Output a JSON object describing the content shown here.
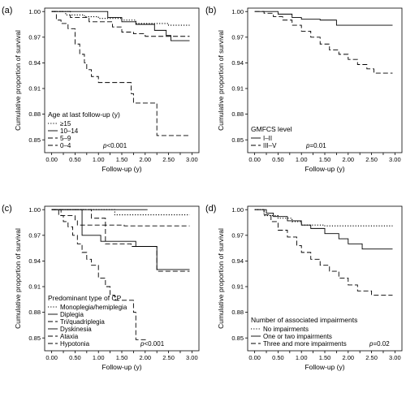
{
  "chart_data": [
    {
      "type": "line",
      "panel_label": "(a)",
      "xlabel": "Follow-up (y)",
      "ylabel": "Cumulative proportion of survival",
      "xlim": [
        -0.15,
        3.15
      ],
      "ylim": [
        0.835,
        1.004
      ],
      "xticks": [
        0.0,
        0.25,
        0.5,
        0.75,
        1.0,
        1.25,
        1.5,
        1.75,
        2.0,
        2.25,
        2.5,
        2.75,
        3.0
      ],
      "xticklabels": [
        "0.00",
        "0.25",
        "0.50",
        "0.75",
        "1.00",
        "1.25",
        "1.50",
        "1.75",
        "2.00",
        "2.25",
        "2.50",
        "2.75",
        "3.00"
      ],
      "yticks": [
        0.85,
        0.88,
        0.91,
        0.94,
        0.97,
        1.0
      ],
      "yticklabels": [
        "0.85",
        "0.88",
        "0.91",
        "0.94",
        "0.97",
        "1.00"
      ],
      "legend_title": "Age at last follow-up (y)",
      "legend_position": "lower-left",
      "p_value_prefix": "p",
      "p_value_text": "<0.001",
      "grid": false,
      "series": [
        {
          "name": "≥15",
          "style": "dotted",
          "points": [
            [
              0,
              1.0
            ],
            [
              0.3,
              0.996
            ],
            [
              0.7,
              0.994
            ],
            [
              1.0,
              0.992
            ],
            [
              1.5,
              0.99
            ],
            [
              1.8,
              0.986
            ],
            [
              2.5,
              0.984
            ],
            [
              2.95,
              0.984
            ]
          ]
        },
        {
          "name": "10–14",
          "style": "solid",
          "points": [
            [
              0,
              1.0
            ],
            [
              1.0,
              1.0
            ],
            [
              1.2,
              0.993
            ],
            [
              1.5,
              0.988
            ],
            [
              1.8,
              0.985
            ],
            [
              2.2,
              0.978
            ],
            [
              2.45,
              0.972
            ],
            [
              2.55,
              0.966
            ],
            [
              2.95,
              0.966
            ]
          ]
        },
        {
          "name": "5–9",
          "style": "dashed",
          "points": [
            [
              0,
              1.0
            ],
            [
              0.4,
              0.993
            ],
            [
              0.8,
              0.988
            ],
            [
              1.3,
              0.982
            ],
            [
              1.5,
              0.976
            ],
            [
              1.75,
              0.974
            ],
            [
              2.0,
              0.971
            ],
            [
              2.95,
              0.971
            ]
          ]
        },
        {
          "name": "0–4",
          "style": "dashed",
          "points": [
            [
              0,
              1.0
            ],
            [
              0.1,
              0.99
            ],
            [
              0.2,
              0.986
            ],
            [
              0.35,
              0.98
            ],
            [
              0.5,
              0.962
            ],
            [
              0.6,
              0.95
            ],
            [
              0.7,
              0.94
            ],
            [
              0.75,
              0.932
            ],
            [
              0.85,
              0.924
            ],
            [
              1.0,
              0.917
            ],
            [
              1.2,
              0.917
            ],
            [
              1.35,
              0.917
            ],
            [
              1.7,
              0.904
            ],
            [
              1.75,
              0.893
            ],
            [
              2.1,
              0.893
            ],
            [
              2.25,
              0.855
            ],
            [
              2.95,
              0.855
            ]
          ]
        }
      ]
    },
    {
      "type": "line",
      "panel_label": "(b)",
      "xlabel": "Follow-up (y)",
      "ylabel": "Cumulative proportion of survival",
      "xlim": [
        -0.15,
        3.15
      ],
      "ylim": [
        0.835,
        1.004
      ],
      "xticks": [
        0.0,
        0.25,
        0.5,
        0.75,
        1.0,
        1.25,
        1.5,
        1.75,
        2.0,
        2.25,
        2.5,
        2.75,
        3.0
      ],
      "xticklabels": [
        "0.00",
        "0.25",
        "0.50",
        "0.75",
        "1.00",
        "1.25",
        "1.50",
        "1.75",
        "2.00",
        "2.25",
        "2.50",
        "2.75",
        "3.00"
      ],
      "yticks": [
        0.85,
        0.88,
        0.91,
        0.94,
        0.97,
        1.0
      ],
      "yticklabels": [
        "0.85",
        "0.88",
        "0.91",
        "0.94",
        "0.97",
        "1.00"
      ],
      "legend_title": "GMFCS level",
      "legend_position": "lower-left",
      "p_value_prefix": "p",
      "p_value_text": "=0.01",
      "grid": false,
      "series": [
        {
          "name": "I–II",
          "style": "solid",
          "points": [
            [
              0,
              1.0
            ],
            [
              0.5,
              0.997
            ],
            [
              0.8,
              0.993
            ],
            [
              1.0,
              0.991
            ],
            [
              1.4,
              0.99
            ],
            [
              1.75,
              0.984
            ],
            [
              2.95,
              0.984
            ]
          ]
        },
        {
          "name": "III–V",
          "style": "dashed",
          "points": [
            [
              0,
              1.0
            ],
            [
              0.2,
              0.998
            ],
            [
              0.4,
              0.994
            ],
            [
              0.6,
              0.99
            ],
            [
              0.8,
              0.984
            ],
            [
              1.0,
              0.977
            ],
            [
              1.2,
              0.97
            ],
            [
              1.4,
              0.962
            ],
            [
              1.6,
              0.955
            ],
            [
              1.8,
              0.95
            ],
            [
              2.0,
              0.944
            ],
            [
              2.2,
              0.938
            ],
            [
              2.4,
              0.933
            ],
            [
              2.55,
              0.928
            ],
            [
              2.95,
              0.928
            ]
          ]
        }
      ]
    },
    {
      "type": "line",
      "panel_label": "(c)",
      "xlabel": "Follow-up (y)",
      "ylabel": "Cumulative proportion of survival",
      "xlim": [
        -0.15,
        3.15
      ],
      "ylim": [
        0.835,
        1.004
      ],
      "xticks": [
        0.0,
        0.25,
        0.5,
        0.75,
        1.0,
        1.25,
        1.5,
        1.75,
        2.0,
        2.25,
        2.5,
        2.75,
        3.0
      ],
      "xticklabels": [
        "0.00",
        "0.25",
        "0.50",
        "0.75",
        "1.00",
        "1.25",
        "1.50",
        "1.75",
        "2.00",
        "2.25",
        "2.50",
        "2.75",
        "3.00"
      ],
      "yticks": [
        0.85,
        0.88,
        0.91,
        0.94,
        0.97,
        1.0
      ],
      "yticklabels": [
        "0.85",
        "0.88",
        "0.91",
        "0.94",
        "0.97",
        "1.00"
      ],
      "legend_title": "Predominant type of CP",
      "legend_position": "lower-left",
      "p_value_prefix": "p",
      "p_value_text": "<0.001",
      "grid": false,
      "series": [
        {
          "name": "Monoplegia/hemiplegia",
          "style": "dotted",
          "points": [
            [
              0,
              1.0
            ],
            [
              1.3,
              1.0
            ],
            [
              1.35,
              0.994
            ],
            [
              2.95,
              0.994
            ]
          ]
        },
        {
          "name": "Diplegia",
          "style": "solid",
          "points": [
            [
              0,
              1.0
            ],
            [
              2.05,
              1.0
            ]
          ]
        },
        {
          "name": "Tri/quadriplegia",
          "style": "dashed",
          "points": [
            [
              0,
              1.0
            ],
            [
              0.2,
              0.993
            ],
            [
              0.5,
              0.988
            ],
            [
              0.55,
              0.982
            ],
            [
              1.5,
              0.982
            ],
            [
              1.55,
              0.981
            ],
            [
              2.95,
              0.981
            ]
          ]
        },
        {
          "name": "Dyskinesia",
          "style": "solid",
          "points": [
            [
              0,
              1.0
            ],
            [
              0.6,
              1.0
            ],
            [
              0.65,
              0.97
            ],
            [
              1.0,
              0.97
            ],
            [
              1.05,
              0.963
            ],
            [
              1.75,
              0.963
            ],
            [
              1.8,
              0.957
            ],
            [
              2.2,
              0.957
            ],
            [
              2.25,
              0.93
            ],
            [
              2.95,
              0.93
            ]
          ]
        },
        {
          "name": "Ataxia",
          "style": "dashed",
          "points": [
            [
              0,
              1.0
            ],
            [
              0.8,
              1.0
            ],
            [
              0.85,
              0.99
            ],
            [
              1.1,
              0.99
            ],
            [
              1.15,
              0.96
            ],
            [
              1.65,
              0.96
            ],
            [
              1.7,
              0.957
            ],
            [
              2.2,
              0.957
            ],
            [
              2.25,
              0.928
            ],
            [
              2.95,
              0.928
            ]
          ]
        },
        {
          "name": "Hypotonia",
          "style": "dashed",
          "points": [
            [
              0,
              1.0
            ],
            [
              0.15,
              0.993
            ],
            [
              0.25,
              0.986
            ],
            [
              0.35,
              0.98
            ],
            [
              0.45,
              0.97
            ],
            [
              0.55,
              0.96
            ],
            [
              0.65,
              0.95
            ],
            [
              0.75,
              0.942
            ],
            [
              0.85,
              0.935
            ],
            [
              1.0,
              0.92
            ],
            [
              1.15,
              0.91
            ],
            [
              1.25,
              0.9
            ],
            [
              1.35,
              0.894
            ],
            [
              1.65,
              0.894
            ],
            [
              1.75,
              0.88
            ],
            [
              1.8,
              0.848
            ],
            [
              2.05,
              0.848
            ]
          ]
        }
      ]
    },
    {
      "type": "line",
      "panel_label": "(d)",
      "xlabel": "Follow-up (y)",
      "ylabel": "Cumulative proportion of survival",
      "xlim": [
        -0.15,
        3.15
      ],
      "ylim": [
        0.835,
        1.004
      ],
      "xticks": [
        0.0,
        0.25,
        0.5,
        0.75,
        1.0,
        1.25,
        1.5,
        1.75,
        2.0,
        2.25,
        2.5,
        2.75,
        3.0
      ],
      "xticklabels": [
        "0.00",
        "0.25",
        "0.50",
        "0.75",
        "1.00",
        "1.25",
        "1.50",
        "1.75",
        "2.00",
        "2.25",
        "2.50",
        "2.75",
        "3.00"
      ],
      "yticks": [
        0.85,
        0.88,
        0.91,
        0.94,
        0.97,
        1.0
      ],
      "yticklabels": [
        "0.85",
        "0.88",
        "0.91",
        "0.94",
        "0.97",
        "1.00"
      ],
      "legend_title": "Number of associated impairments",
      "legend_position": "lower-left",
      "p_value_prefix": "p",
      "p_value_text": "=0.02",
      "grid": false,
      "series": [
        {
          "name": "No impairments",
          "style": "dotted",
          "points": [
            [
              0,
              1.0
            ],
            [
              0.2,
              0.993
            ],
            [
              0.5,
              0.99
            ],
            [
              0.8,
              0.986
            ],
            [
              1.0,
              0.982
            ],
            [
              1.5,
              0.981
            ],
            [
              2.95,
              0.981
            ]
          ]
        },
        {
          "name": "One or two impairments",
          "style": "solid",
          "points": [
            [
              0,
              1.0
            ],
            [
              0.25,
              0.996
            ],
            [
              0.4,
              0.992
            ],
            [
              0.7,
              0.987
            ],
            [
              1.0,
              0.982
            ],
            [
              1.2,
              0.978
            ],
            [
              1.5,
              0.972
            ],
            [
              1.8,
              0.966
            ],
            [
              2.0,
              0.96
            ],
            [
              2.3,
              0.954
            ],
            [
              2.95,
              0.954
            ]
          ]
        },
        {
          "name": "Three and more impairments",
          "style": "dashed",
          "points": [
            [
              0,
              1.0
            ],
            [
              0.2,
              0.994
            ],
            [
              0.35,
              0.986
            ],
            [
              0.5,
              0.976
            ],
            [
              0.7,
              0.968
            ],
            [
              0.9,
              0.958
            ],
            [
              1.0,
              0.95
            ],
            [
              1.2,
              0.942
            ],
            [
              1.4,
              0.935
            ],
            [
              1.6,
              0.928
            ],
            [
              1.8,
              0.92
            ],
            [
              2.0,
              0.912
            ],
            [
              2.2,
              0.905
            ],
            [
              2.5,
              0.9
            ],
            [
              2.95,
              0.9
            ]
          ]
        }
      ]
    }
  ]
}
